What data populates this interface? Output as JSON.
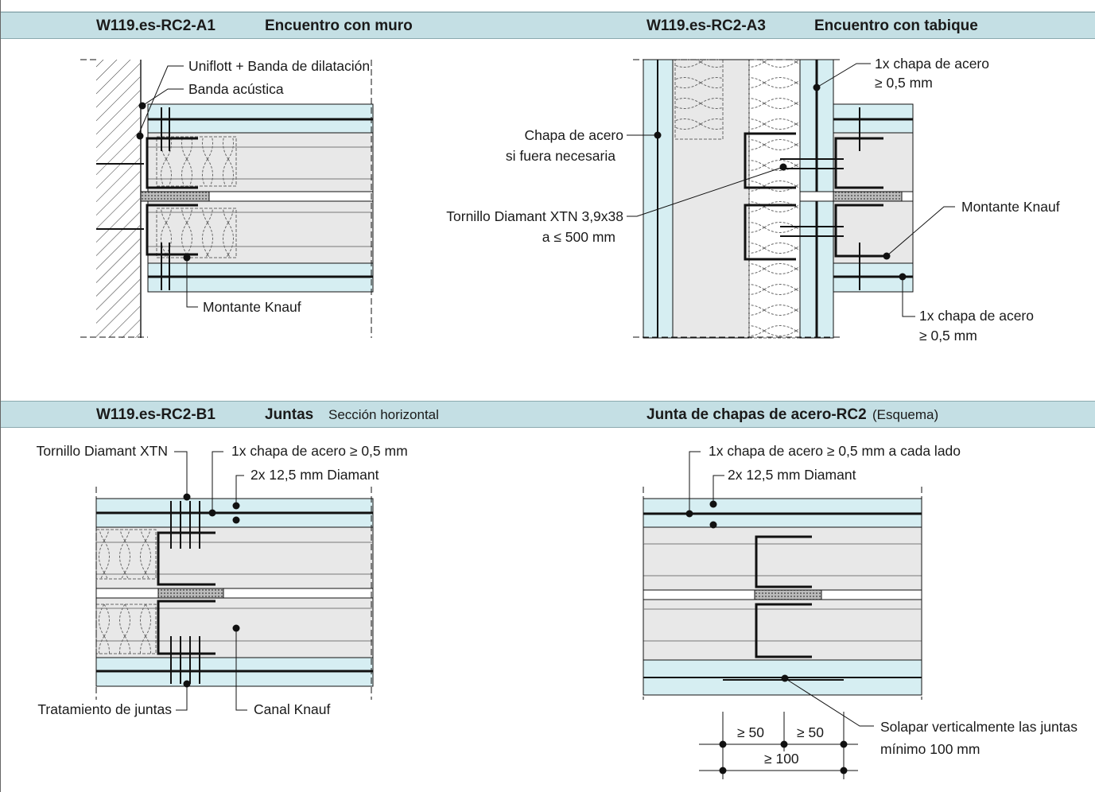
{
  "panels": {
    "a1": {
      "code": "W119.es-RC2-A1",
      "title": "Encuentro con muro",
      "labels": {
        "uniflott": "Uniflott + Banda de dilatación",
        "acustica": "Banda acústica",
        "montante": "Montante Knauf"
      }
    },
    "a3": {
      "code": "W119.es-RC2-A3",
      "title": "Encuentro con tabique",
      "labels": {
        "chapa_top_1": "1x chapa de acero",
        "chapa_top_2": "≥ 0,5 mm",
        "chapa_nec_1": "Chapa de acero",
        "chapa_nec_2": "si fuera necesaria",
        "tornillo_1": "Tornillo Diamant XTN 3,9x38",
        "tornillo_2": "a ≤ 500 mm",
        "montante": "Montante Knauf",
        "chapa_bot_1": "1x chapa de acero",
        "chapa_bot_2": "≥ 0,5 mm"
      }
    },
    "b1": {
      "code": "W119.es-RC2-B1",
      "title": "Juntas",
      "subtitle": "Sección horizontal",
      "labels": {
        "tornillo": "Tornillo Diamant XTN",
        "chapa": "1x chapa de acero ≥ 0,5 mm",
        "diamant": "2x 12,5 mm Diamant",
        "juntas": "Tratamiento de juntas",
        "canal": "Canal Knauf"
      }
    },
    "junta": {
      "title": "Junta de chapas de acero-RC2",
      "subtitle": "(Esquema)",
      "labels": {
        "chapa": "1x chapa de acero ≥ 0,5 mm a cada lado",
        "diamant": "2x 12,5 mm Diamant",
        "solapar_1": "Solapar verticalmente las juntas",
        "solapar_2": "mínimo 100 mm",
        "dim50a": "≥ 50",
        "dim50b": "≥ 50",
        "dim100": "≥ 100"
      }
    }
  },
  "colors": {
    "header": "#c4dfe4",
    "board": "#d6eef2",
    "core": "#e8e8e8",
    "line": "#111111"
  }
}
